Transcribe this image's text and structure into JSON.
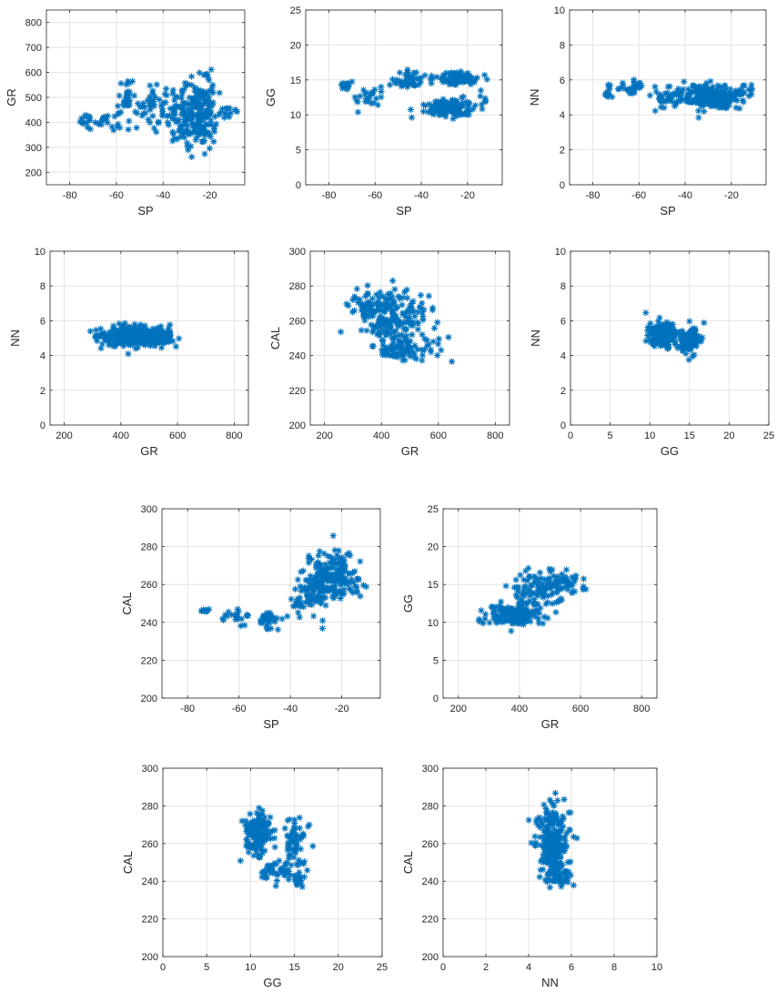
{
  "chart_data": [
    {
      "type": "scatter",
      "xlabel": "SP",
      "ylabel": "GR",
      "xlim": [
        -90,
        -5
      ],
      "ylim": [
        150,
        850
      ],
      "xticks": [
        -80,
        -60,
        -40,
        -20
      ],
      "yticks": [
        200,
        300,
        400,
        500,
        600,
        700,
        800
      ],
      "marker": "asterisk",
      "color": "#0072bd",
      "grid": true,
      "clusters": [
        {
          "cx": -73,
          "cy": 410,
          "sx": 1.2,
          "sy": 25,
          "n": 12
        },
        {
          "cx": -64,
          "cy": 410,
          "sx": 3,
          "sy": 20,
          "n": 22
        },
        {
          "cx": -55,
          "cy": 500,
          "sx": 2.5,
          "sy": 45,
          "n": 30
        },
        {
          "cx": -45,
          "cy": 470,
          "sx": 3,
          "sy": 50,
          "n": 40
        },
        {
          "cx": -30,
          "cy": 430,
          "sx": 5,
          "sy": 55,
          "n": 130
        },
        {
          "cx": -23,
          "cy": 420,
          "sx": 2.5,
          "sy": 60,
          "n": 90
        },
        {
          "cx": -20,
          "cy": 520,
          "sx": 1.5,
          "sy": 45,
          "n": 25
        },
        {
          "cx": -12,
          "cy": 440,
          "sx": 2,
          "sy": 12,
          "n": 12
        }
      ]
    },
    {
      "type": "scatter",
      "xlabel": "SP",
      "ylabel": "GG",
      "xlim": [
        -90,
        -5
      ],
      "ylim": [
        0,
        25
      ],
      "xticks": [
        -80,
        -60,
        -40,
        -20
      ],
      "yticks": [
        0,
        5,
        10,
        15,
        20,
        25
      ],
      "marker": "asterisk",
      "color": "#0072bd",
      "grid": true,
      "clusters": [
        {
          "cx": -73,
          "cy": 14.3,
          "sx": 1.2,
          "sy": 0.4,
          "n": 14
        },
        {
          "cx": -62,
          "cy": 12.5,
          "sx": 3,
          "sy": 0.7,
          "n": 25
        },
        {
          "cx": -46,
          "cy": 15.0,
          "sx": 3,
          "sy": 0.7,
          "n": 45
        },
        {
          "cx": -28,
          "cy": 11.0,
          "sx": 5,
          "sy": 0.6,
          "n": 160
        },
        {
          "cx": -25,
          "cy": 15.2,
          "sx": 5,
          "sy": 0.5,
          "n": 90
        },
        {
          "cx": -14,
          "cy": 11.5,
          "sx": 1.5,
          "sy": 0.8,
          "n": 6
        }
      ]
    },
    {
      "type": "scatter",
      "xlabel": "SP",
      "ylabel": "NN",
      "xlim": [
        -90,
        -5
      ],
      "ylim": [
        0,
        10
      ],
      "xticks": [
        -80,
        -60,
        -40,
        -20
      ],
      "yticks": [
        0,
        2,
        4,
        6,
        8,
        10
      ],
      "marker": "asterisk",
      "color": "#0072bd",
      "grid": true,
      "clusters": [
        {
          "cx": -73,
          "cy": 5.3,
          "sx": 1.2,
          "sy": 0.3,
          "n": 12
        },
        {
          "cx": -62,
          "cy": 5.6,
          "sx": 3.5,
          "sy": 0.2,
          "n": 30
        },
        {
          "cx": -48,
          "cy": 5.0,
          "sx": 4,
          "sy": 0.35,
          "n": 45
        },
        {
          "cx": -28,
          "cy": 5.0,
          "sx": 6,
          "sy": 0.35,
          "n": 230
        },
        {
          "cx": -13,
          "cy": 5.5,
          "sx": 1.5,
          "sy": 0.2,
          "n": 10
        }
      ]
    },
    {
      "type": "scatter",
      "xlabel": "GR",
      "ylabel": "NN",
      "xlim": [
        150,
        850
      ],
      "ylim": [
        0,
        10
      ],
      "xticks": [
        200,
        400,
        600,
        800
      ],
      "yticks": [
        0,
        2,
        4,
        6,
        8,
        10
      ],
      "marker": "asterisk",
      "color": "#0072bd",
      "grid": true,
      "clusters": [
        {
          "cx": 420,
          "cy": 5.1,
          "sx": 55,
          "sy": 0.3,
          "n": 230
        },
        {
          "cx": 520,
          "cy": 5.1,
          "sx": 40,
          "sy": 0.3,
          "n": 90
        }
      ]
    },
    {
      "type": "scatter",
      "xlabel": "GR",
      "ylabel": "CAL",
      "xlim": [
        150,
        850
      ],
      "ylim": [
        200,
        300
      ],
      "xticks": [
        200,
        400,
        600,
        800
      ],
      "yticks": [
        200,
        220,
        240,
        260,
        280,
        300
      ],
      "marker": "asterisk",
      "color": "#0072bd",
      "grid": true,
      "clusters": [
        {
          "cx": 390,
          "cy": 270,
          "sx": 50,
          "sy": 5,
          "n": 90
        },
        {
          "cx": 430,
          "cy": 258,
          "sx": 60,
          "sy": 5,
          "n": 110
        },
        {
          "cx": 470,
          "cy": 244,
          "sx": 60,
          "sy": 3.5,
          "n": 90
        },
        {
          "cx": 530,
          "cy": 266,
          "sx": 30,
          "sy": 6,
          "n": 20
        }
      ]
    },
    {
      "type": "scatter",
      "xlabel": "GG",
      "ylabel": "NN",
      "xlim": [
        0,
        25
      ],
      "ylim": [
        0,
        10
      ],
      "xticks": [
        0,
        5,
        10,
        15,
        20,
        25
      ],
      "yticks": [
        0,
        2,
        4,
        6,
        8,
        10
      ],
      "marker": "asterisk",
      "color": "#0072bd",
      "grid": true,
      "clusters": [
        {
          "cx": 11.5,
          "cy": 5.2,
          "sx": 0.9,
          "sy": 0.35,
          "n": 170
        },
        {
          "cx": 15.0,
          "cy": 5.0,
          "sx": 0.7,
          "sy": 0.35,
          "n": 110
        }
      ]
    },
    {
      "type": "scatter",
      "xlabel": "SP",
      "ylabel": "CAL",
      "xlim": [
        -90,
        -5
      ],
      "ylim": [
        200,
        300
      ],
      "xticks": [
        -80,
        -60,
        -40,
        -20
      ],
      "yticks": [
        200,
        220,
        240,
        260,
        280,
        300
      ],
      "marker": "asterisk",
      "color": "#0072bd",
      "grid": true,
      "clusters": [
        {
          "cx": -73,
          "cy": 246,
          "sx": 1.0,
          "sy": 0.6,
          "n": 8
        },
        {
          "cx": -62,
          "cy": 243,
          "sx": 3,
          "sy": 2.5,
          "n": 20
        },
        {
          "cx": -47,
          "cy": 242,
          "sx": 3,
          "sy": 2.5,
          "n": 30
        },
        {
          "cx": -35,
          "cy": 252,
          "sx": 3,
          "sy": 4,
          "n": 40
        },
        {
          "cx": -27,
          "cy": 262,
          "sx": 4,
          "sy": 6,
          "n": 150
        },
        {
          "cx": -20,
          "cy": 268,
          "sx": 3,
          "sy": 6,
          "n": 60
        },
        {
          "cx": -13,
          "cy": 257,
          "sx": 1.5,
          "sy": 3,
          "n": 10
        }
      ]
    },
    {
      "type": "scatter",
      "xlabel": "GR",
      "ylabel": "GG",
      "xlim": [
        150,
        850
      ],
      "ylim": [
        0,
        25
      ],
      "xticks": [
        200,
        400,
        600,
        800
      ],
      "yticks": [
        0,
        5,
        10,
        15,
        20,
        25
      ],
      "marker": "asterisk",
      "color": "#0072bd",
      "grid": true,
      "clusters": [
        {
          "cx": 390,
          "cy": 11.0,
          "sx": 45,
          "sy": 0.7,
          "n": 160
        },
        {
          "cx": 470,
          "cy": 14.5,
          "sx": 55,
          "sy": 1.2,
          "n": 120
        },
        {
          "cx": 560,
          "cy": 15.2,
          "sx": 25,
          "sy": 0.6,
          "n": 20
        }
      ]
    },
    {
      "type": "scatter",
      "xlabel": "GG",
      "ylabel": "CAL",
      "xlim": [
        0,
        25
      ],
      "ylim": [
        200,
        300
      ],
      "xticks": [
        0,
        5,
        10,
        15,
        20,
        25
      ],
      "yticks": [
        200,
        220,
        240,
        260,
        280,
        300
      ],
      "marker": "asterisk",
      "color": "#0072bd",
      "grid": true,
      "clusters": [
        {
          "cx": 10.8,
          "cy": 265,
          "sx": 0.7,
          "sy": 7,
          "n": 150
        },
        {
          "cx": 15.0,
          "cy": 262,
          "sx": 0.6,
          "sy": 8,
          "n": 60
        },
        {
          "cx": 13.5,
          "cy": 245,
          "sx": 1.2,
          "sy": 3,
          "n": 50
        },
        {
          "cx": 15.8,
          "cy": 241,
          "sx": 0.4,
          "sy": 2,
          "n": 10
        }
      ]
    },
    {
      "type": "scatter",
      "xlabel": "NN",
      "ylabel": "CAL",
      "xlim": [
        0,
        10
      ],
      "ylim": [
        200,
        300
      ],
      "xticks": [
        0,
        2,
        4,
        6,
        8,
        10
      ],
      "yticks": [
        200,
        220,
        240,
        260,
        280,
        300
      ],
      "marker": "asterisk",
      "color": "#0072bd",
      "grid": true,
      "clusters": [
        {
          "cx": 5.1,
          "cy": 268,
          "sx": 0.35,
          "sy": 7,
          "n": 120
        },
        {
          "cx": 5.2,
          "cy": 252,
          "sx": 0.35,
          "sy": 6,
          "n": 110
        },
        {
          "cx": 5.3,
          "cy": 242,
          "sx": 0.35,
          "sy": 3,
          "n": 50
        }
      ]
    }
  ]
}
